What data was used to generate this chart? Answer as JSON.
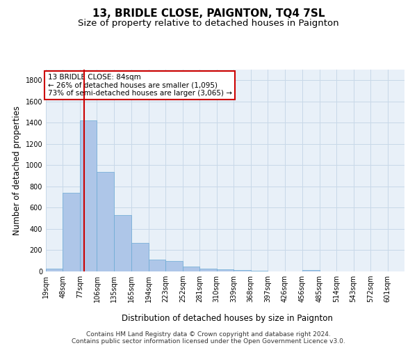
{
  "title": "13, BRIDLE CLOSE, PAIGNTON, TQ4 7SL",
  "subtitle": "Size of property relative to detached houses in Paignton",
  "xlabel": "Distribution of detached houses by size in Paignton",
  "ylabel": "Number of detached properties",
  "footer_line1": "Contains HM Land Registry data © Crown copyright and database right 2024.",
  "footer_line2": "Contains public sector information licensed under the Open Government Licence v3.0.",
  "annotation_line1": "13 BRIDLE CLOSE: 84sqm",
  "annotation_line2": "← 26% of detached houses are smaller (1,095)",
  "annotation_line3": "73% of semi-detached houses are larger (3,065) →",
  "bar_values": [
    25,
    740,
    1420,
    935,
    530,
    270,
    110,
    100,
    45,
    28,
    22,
    14,
    5,
    2,
    2,
    10,
    2,
    0,
    0,
    0,
    0
  ],
  "bin_labels": [
    "19sqm",
    "48sqm",
    "77sqm",
    "106sqm",
    "135sqm",
    "165sqm",
    "194sqm",
    "223sqm",
    "252sqm",
    "281sqm",
    "310sqm",
    "339sqm",
    "368sqm",
    "397sqm",
    "426sqm",
    "456sqm",
    "485sqm",
    "514sqm",
    "543sqm",
    "572sqm",
    "601sqm"
  ],
  "bin_edges": [
    19,
    48,
    77,
    106,
    135,
    165,
    194,
    223,
    252,
    281,
    310,
    339,
    368,
    397,
    426,
    456,
    485,
    514,
    543,
    572,
    601,
    630
  ],
  "bar_color": "#aec6e8",
  "bar_edge_color": "#6aaad4",
  "vline_x": 84,
  "vline_color": "#cc0000",
  "ylim": [
    0,
    1900
  ],
  "yticks": [
    0,
    200,
    400,
    600,
    800,
    1000,
    1200,
    1400,
    1600,
    1800
  ],
  "bg_color": "#ffffff",
  "grid_color": "#c8d8e8",
  "annotation_box_color": "#cc0000",
  "title_fontsize": 11,
  "subtitle_fontsize": 9.5,
  "xlabel_fontsize": 8.5,
  "ylabel_fontsize": 8.5,
  "tick_fontsize": 7,
  "footer_fontsize": 6.5,
  "annotation_fontsize": 7.5
}
